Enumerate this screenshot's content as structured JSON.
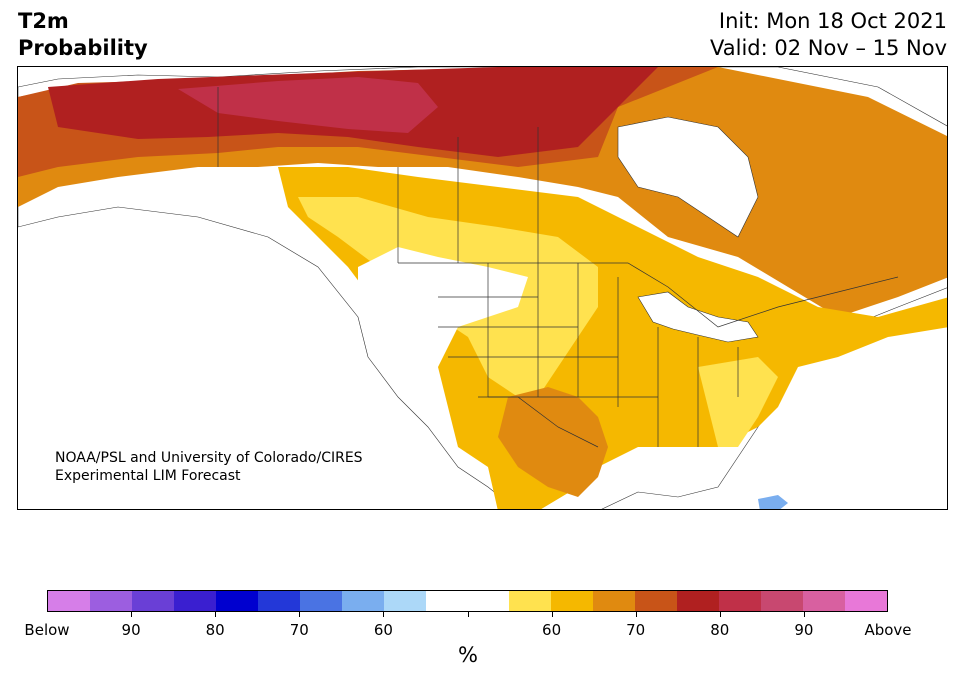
{
  "header": {
    "title_line1": "T2m",
    "title_line2": "Probability",
    "init": "Init: Mon 18 Oct 2021",
    "valid": "Valid: 02 Nov – 15 Nov"
  },
  "credit": {
    "line1": "NOAA/PSL and University of Colorado/CIRES",
    "line2": "Experimental LIM Forecast"
  },
  "colorbar": {
    "colors": [
      "#d67ee8",
      "#9c5ee0",
      "#6a3fd6",
      "#3a1fd0",
      "#0000cf",
      "#2338d8",
      "#4a73e3",
      "#7aaeef",
      "#acd8f8",
      "#ffffff",
      "#ffffff",
      "#ffe24f",
      "#f5b800",
      "#e08a10",
      "#c85418",
      "#b02020",
      "#c03048",
      "#c84870",
      "#d860a0",
      "#e878d8"
    ],
    "labels": [
      "Below",
      "90",
      "80",
      "70",
      "60",
      "",
      "60",
      "70",
      "80",
      "90",
      "Above"
    ],
    "unit": "%"
  },
  "map_colors": {
    "ocean": "#ffffff",
    "land_neutral": "#ffffff",
    "yellow": "#ffe24f",
    "gold": "#f5b800",
    "orange": "#e08a10",
    "dark_orange": "#c85418",
    "red": "#b02020",
    "crimson": "#c03048",
    "light_blue": "#7aaeef",
    "border": "#333333"
  }
}
